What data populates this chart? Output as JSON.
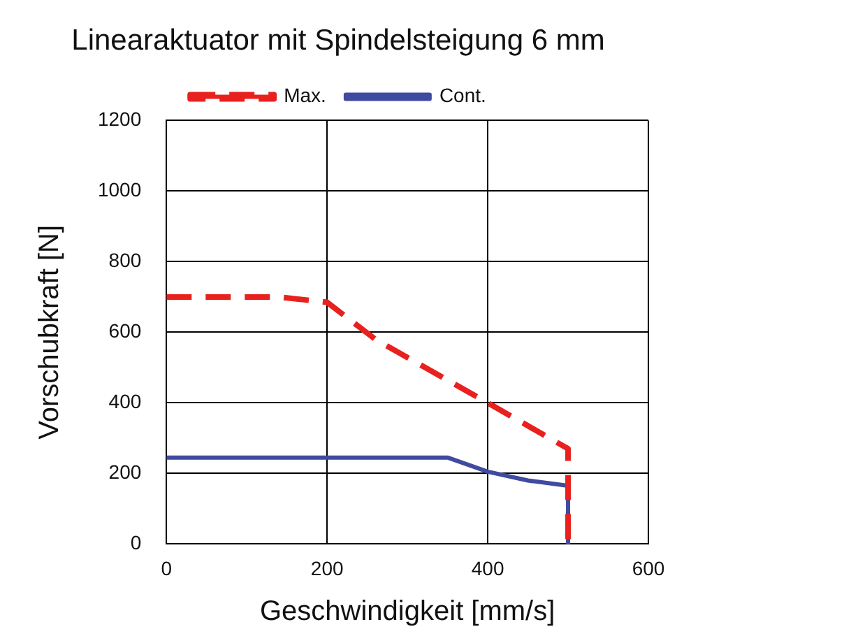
{
  "chart_data": {
    "type": "line",
    "title": "Linearaktuator mit Spindelsteigung 6 mm",
    "xlabel": "Geschwindigkeit [mm/s]",
    "ylabel": "Vorschubkraft [N]",
    "series": [
      {
        "name": "Max.",
        "color": "#e8211e",
        "line_style": "dashed",
        "x": [
          0,
          140,
          200,
          260,
          400,
          500,
          500
        ],
        "values": [
          700,
          700,
          685,
          580,
          400,
          270,
          0
        ]
      },
      {
        "name": "Cont.",
        "color": "#3f4aa0",
        "line_style": "solid",
        "x": [
          0,
          350,
          400,
          450,
          500,
          500
        ],
        "values": [
          245,
          245,
          205,
          180,
          165,
          0
        ]
      }
    ],
    "xlim": [
      0,
      600
    ],
    "xticks": [
      0,
      200,
      400,
      600
    ],
    "ylim": [
      0,
      1200
    ],
    "yticks": [
      0,
      200,
      400,
      600,
      800,
      1000,
      1200
    ],
    "grid": true,
    "legend": "top",
    "marker": "none"
  }
}
